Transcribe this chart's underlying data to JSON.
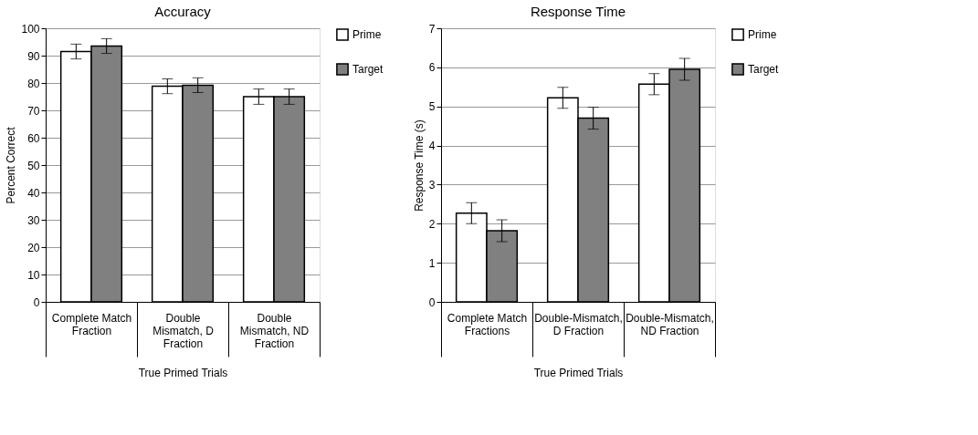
{
  "chart_data": [
    {
      "type": "bar",
      "title": "Accuracy",
      "ylabel": "Percent Correct",
      "xlabel": "True Primed Trials",
      "categories": [
        "Complete Match\nFraction",
        "Double\nMismatch, D\nFraction",
        "Double\nMismatch, ND\nFraction"
      ],
      "series": [
        {
          "name": "Prime",
          "color": "#ffffff",
          "values": [
            91.5,
            78.8,
            75.0
          ],
          "errors": [
            2.7,
            2.7,
            2.8
          ]
        },
        {
          "name": "Target",
          "color": "#808080",
          "values": [
            93.5,
            79.2,
            75.0
          ],
          "errors": [
            2.7,
            2.7,
            2.8
          ]
        }
      ],
      "ylim": [
        0,
        100
      ],
      "yticks": [
        0,
        10,
        20,
        30,
        40,
        50,
        60,
        70,
        80,
        90,
        100
      ],
      "grid": "y",
      "legend": "right"
    },
    {
      "type": "bar",
      "title": "Response Time",
      "ylabel": "Response Time (s)",
      "xlabel": "True Primed Trials",
      "categories": [
        "Complete Match\nFractions",
        "Double-Mismatch,\nD Fraction",
        "Double-Mismatch,\nND Fraction"
      ],
      "series": [
        {
          "name": "Prime",
          "color": "#ffffff",
          "values": [
            2.27,
            5.22,
            5.57
          ],
          "errors": [
            0.27,
            0.27,
            0.27
          ]
        },
        {
          "name": "Target",
          "color": "#808080",
          "values": [
            1.82,
            4.7,
            5.95
          ],
          "errors": [
            0.28,
            0.28,
            0.28
          ]
        }
      ],
      "ylim": [
        0,
        7
      ],
      "yticks": [
        0,
        1,
        2,
        3,
        4,
        5,
        6,
        7
      ],
      "grid": "y",
      "legend": "right"
    }
  ]
}
